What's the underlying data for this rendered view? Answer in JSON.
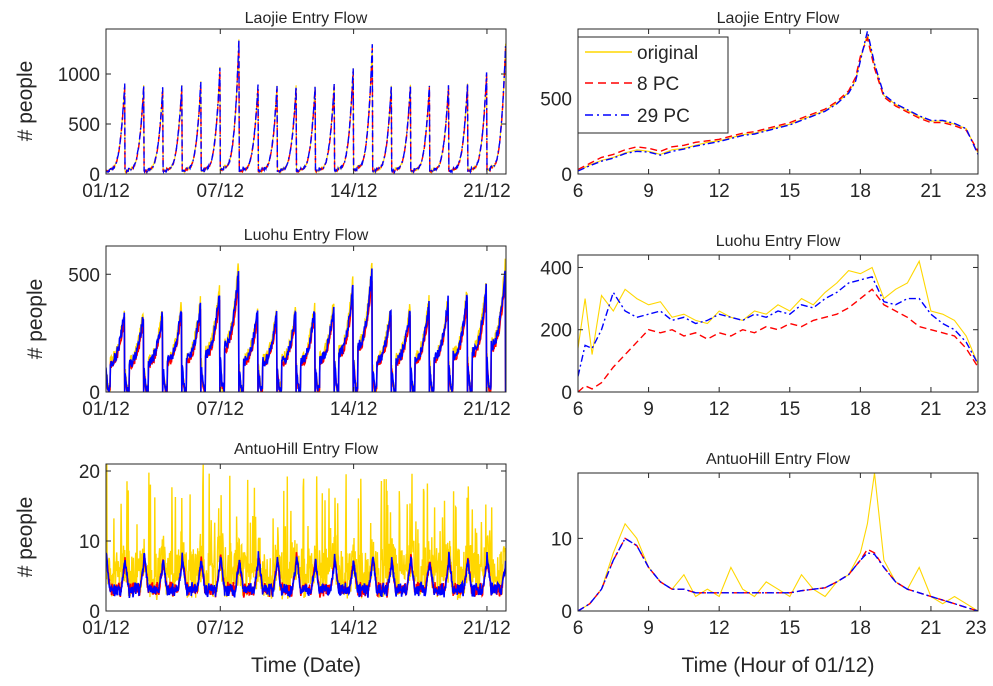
{
  "figure": {
    "xlabel_left": "Time (Date)",
    "xlabel_right": "Time (Hour of 01/12)",
    "ylabel": "# people"
  },
  "legend": {
    "placement": "top-left of top-right panel",
    "entries": [
      {
        "label": "original",
        "color": "#FFD700",
        "style": "solid"
      },
      {
        "label": "8 PC",
        "color": "#FF0000",
        "style": "dashed"
      },
      {
        "label": "29 PC",
        "color": "#0000FF",
        "style": "dash-dot"
      }
    ]
  },
  "chart_data": [
    {
      "type": "line",
      "title": "Laojie Entry Flow",
      "xlabel": "",
      "ylabel": "# people",
      "x_axis": "date",
      "xlim": [
        "01/12",
        "22/12"
      ],
      "ylim": [
        0,
        1450
      ],
      "xticks": [
        "01/12",
        "07/12",
        "14/12",
        "21/12"
      ],
      "yticks": [
        0,
        500,
        1000
      ],
      "days": 21,
      "daily_peaks": [
        980,
        950,
        940,
        960,
        1000,
        1150,
        1450,
        960,
        960,
        950,
        950,
        980,
        1150,
        1400,
        960,
        970,
        960,
        960,
        980,
        1100,
        1400
      ],
      "series": [
        {
          "name": "original"
        },
        {
          "name": "8 PC"
        },
        {
          "name": "29 PC"
        }
      ]
    },
    {
      "type": "line",
      "title": "Laojie Entry Flow",
      "xlabel": "",
      "ylabel": "",
      "x_axis": "hour",
      "xlim": [
        6,
        23
      ],
      "ylim": [
        0,
        960
      ],
      "xticks": [
        6,
        9,
        12,
        15,
        18,
        21,
        23
      ],
      "yticks": [
        0,
        500
      ],
      "x": [
        6,
        6.5,
        7,
        7.5,
        8,
        8.5,
        9,
        9.5,
        10,
        10.5,
        11,
        11.5,
        12,
        12.5,
        13,
        13.5,
        14,
        14.5,
        15,
        15.5,
        16,
        16.5,
        17,
        17.5,
        17.8,
        18,
        18.3,
        18.6,
        19,
        19.5,
        20,
        20.5,
        21,
        21.5,
        22,
        22.5,
        23
      ],
      "series": [
        {
          "name": "original",
          "values": [
            20,
            60,
            90,
            110,
            140,
            160,
            150,
            130,
            160,
            170,
            190,
            210,
            220,
            240,
            260,
            270,
            290,
            310,
            330,
            360,
            390,
            420,
            470,
            540,
            620,
            760,
            930,
            720,
            520,
            460,
            420,
            380,
            350,
            350,
            330,
            300,
            140
          ]
        },
        {
          "name": "8 PC",
          "values": [
            30,
            70,
            110,
            130,
            160,
            180,
            170,
            150,
            180,
            190,
            210,
            220,
            230,
            250,
            270,
            280,
            300,
            320,
            340,
            370,
            400,
            430,
            480,
            550,
            640,
            780,
            900,
            700,
            510,
            450,
            410,
            370,
            340,
            340,
            320,
            290,
            150
          ]
        },
        {
          "name": "29 PC",
          "values": [
            20,
            55,
            85,
            105,
            135,
            150,
            145,
            125,
            150,
            165,
            185,
            200,
            215,
            235,
            255,
            265,
            285,
            305,
            325,
            355,
            385,
            415,
            465,
            535,
            615,
            750,
            945,
            730,
            525,
            465,
            425,
            385,
            355,
            355,
            335,
            300,
            130
          ]
        }
      ]
    },
    {
      "type": "line",
      "title": "Luohu Entry Flow",
      "xlabel": "",
      "ylabel": "# people",
      "x_axis": "date",
      "xlim": [
        "01/12",
        "22/12"
      ],
      "ylim": [
        0,
        620
      ],
      "xticks": [
        "01/12",
        "07/12",
        "14/12",
        "21/12"
      ],
      "yticks": [
        0,
        500
      ],
      "days": 21,
      "daily_peaks": [
        360,
        350,
        360,
        380,
        400,
        460,
        560,
        370,
        360,
        370,
        380,
        400,
        480,
        560,
        380,
        380,
        400,
        420,
        440,
        480,
        560
      ],
      "series": [
        {
          "name": "original"
        },
        {
          "name": "8 PC"
        },
        {
          "name": "29 PC"
        }
      ]
    },
    {
      "type": "line",
      "title": "Luohu Entry Flow",
      "xlabel": "",
      "ylabel": "",
      "x_axis": "hour",
      "xlim": [
        6,
        23
      ],
      "ylim": [
        0,
        440
      ],
      "xticks": [
        6,
        9,
        12,
        15,
        18,
        21,
        23
      ],
      "yticks": [
        0,
        200,
        400
      ],
      "x": [
        6,
        6.3,
        6.6,
        7,
        7.5,
        8,
        8.5,
        9,
        9.5,
        10,
        10.5,
        11,
        11.5,
        12,
        12.5,
        13,
        13.5,
        14,
        14.5,
        15,
        15.5,
        16,
        16.5,
        17,
        17.5,
        18,
        18.5,
        19,
        19.5,
        20,
        20.5,
        21,
        21.5,
        22,
        22.5,
        23
      ],
      "series": [
        {
          "name": "original",
          "values": [
            140,
            300,
            120,
            310,
            260,
            330,
            300,
            280,
            290,
            240,
            250,
            230,
            220,
            260,
            240,
            230,
            260,
            250,
            280,
            260,
            300,
            280,
            320,
            350,
            390,
            380,
            400,
            300,
            330,
            350,
            420,
            260,
            250,
            230,
            180,
            90
          ]
        },
        {
          "name": "8 PC",
          "values": [
            0,
            20,
            10,
            30,
            80,
            120,
            160,
            200,
            190,
            200,
            180,
            190,
            170,
            190,
            180,
            200,
            190,
            210,
            200,
            220,
            210,
            230,
            240,
            250,
            270,
            300,
            330,
            280,
            260,
            240,
            210,
            200,
            190,
            180,
            140,
            80
          ]
        },
        {
          "name": "29 PC",
          "values": [
            50,
            150,
            140,
            200,
            320,
            260,
            240,
            250,
            260,
            230,
            240,
            220,
            230,
            250,
            240,
            230,
            250,
            240,
            260,
            250,
            280,
            270,
            300,
            320,
            350,
            360,
            370,
            290,
            280,
            300,
            300,
            250,
            220,
            200,
            160,
            90
          ]
        }
      ]
    },
    {
      "type": "line",
      "title": "AntuoHill Entry Flow",
      "xlabel": "",
      "ylabel": "# people",
      "x_axis": "date",
      "xlim": [
        "01/12",
        "22/12"
      ],
      "ylim": [
        0,
        21
      ],
      "xticks": [
        "01/12",
        "07/12",
        "14/12",
        "21/12"
      ],
      "yticks": [
        0,
        10,
        20
      ],
      "days": 21,
      "daily_peaks": [
        9,
        8,
        9,
        8,
        9,
        8,
        9,
        8,
        9,
        8,
        9,
        8,
        9,
        8,
        9,
        8,
        9,
        8,
        9,
        8,
        9
      ],
      "series": [
        {
          "name": "original"
        },
        {
          "name": "8 PC"
        },
        {
          "name": "29 PC"
        }
      ]
    },
    {
      "type": "line",
      "title": "AntuoHill Entry Flow",
      "xlabel": "",
      "ylabel": "",
      "x_axis": "hour",
      "xlim": [
        6,
        23
      ],
      "ylim": [
        0,
        19
      ],
      "xticks": [
        6,
        9,
        12,
        15,
        18,
        21,
        23
      ],
      "yticks": [
        0,
        10
      ],
      "x": [
        6,
        6.5,
        7,
        7.5,
        8,
        8.5,
        9,
        9.5,
        10,
        10.5,
        11,
        11.5,
        12,
        12.5,
        13,
        13.5,
        14,
        14.5,
        15,
        15.5,
        16,
        16.5,
        17,
        17.5,
        18,
        18.3,
        18.6,
        19,
        19.5,
        20,
        20.5,
        21,
        21.5,
        22,
        22.5,
        23
      ],
      "series": [
        {
          "name": "original",
          "values": [
            0,
            1,
            3,
            8,
            12,
            10,
            6,
            4,
            3,
            5,
            2,
            3,
            2,
            6,
            3,
            2,
            4,
            3,
            2,
            5,
            3,
            2,
            4,
            5,
            8,
            12,
            19,
            7,
            4,
            3,
            6,
            2,
            1,
            2,
            1,
            0
          ]
        },
        {
          "name": "8 PC",
          "values": [
            0,
            1,
            3,
            7,
            10,
            9,
            6,
            4,
            3,
            3,
            2.5,
            2.5,
            2.5,
            2.5,
            2.5,
            2.5,
            2.5,
            2.5,
            2.5,
            2.8,
            3,
            3.2,
            4,
            5,
            7,
            8.5,
            8,
            6,
            4,
            3,
            2.5,
            2,
            1.5,
            1,
            0.5,
            0
          ]
        },
        {
          "name": "29 PC",
          "values": [
            0,
            1,
            3,
            7,
            10,
            9,
            6,
            4,
            3,
            3,
            2.5,
            2.5,
            2.5,
            2.5,
            2.5,
            2.5,
            2.5,
            2.5,
            2.5,
            2.8,
            3,
            3.2,
            4,
            5,
            7,
            8,
            7.8,
            6,
            4,
            3,
            2.5,
            2,
            1.5,
            1,
            0.5,
            0
          ]
        }
      ]
    }
  ]
}
